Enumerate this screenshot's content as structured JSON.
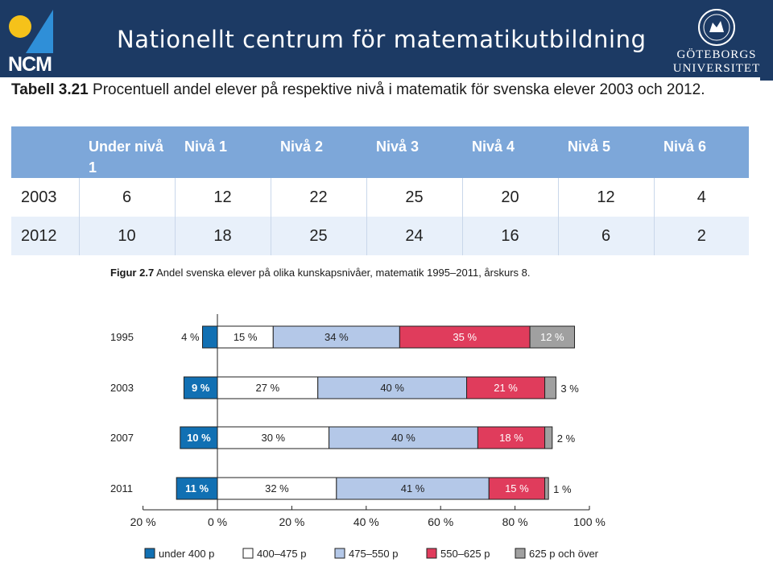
{
  "header": {
    "title": "Nationellt centrum för matematikutbildning",
    "logo_text": "NCM",
    "university_line1": "GÖTEBORGS",
    "university_line2": "UNIVERSITET"
  },
  "table_caption": {
    "label": "Tabell 3.21",
    "text": " Procentuell andel elever på respektive nivå i matematik för svenska elever 2003 och 2012."
  },
  "table": {
    "headers": [
      "",
      "Under nivå 1",
      "Nivå 1",
      "Nivå 2",
      "Nivå 3",
      "Nivå 4",
      "Nivå 5",
      "Nivå 6"
    ],
    "rows": [
      [
        "2003",
        "6",
        "12",
        "22",
        "25",
        "20",
        "12",
        "4"
      ],
      [
        "2012",
        "10",
        "18",
        "25",
        "24",
        "16",
        "6",
        "2"
      ]
    ]
  },
  "figure_caption": {
    "label": "Figur 2.7",
    "text": " Andel svenska elever på olika kunskapsnivåer, matematik 1995–2011, årskurs 8."
  },
  "chart_data": {
    "type": "bar",
    "orientation": "horizontal",
    "stacked": true,
    "baseline_note": "under 400 p extends to the left of 0 %",
    "categories": [
      "1995",
      "2003",
      "2007",
      "2011"
    ],
    "series": [
      {
        "name": "under 400 p",
        "color": "#1170b3",
        "values": [
          4,
          9,
          10,
          11
        ],
        "labels": [
          "4 %",
          "9 %",
          "10 %",
          "11 %"
        ],
        "direction": "negative"
      },
      {
        "name": "400–475 p",
        "color": "#ffffff",
        "values": [
          15,
          27,
          30,
          32
        ],
        "labels": [
          "15 %",
          "27 %",
          "30 %",
          "32 %"
        ]
      },
      {
        "name": "475–550 p",
        "color": "#b4c8e8",
        "values": [
          34,
          40,
          40,
          41
        ],
        "labels": [
          "34 %",
          "40 %",
          "40 %",
          "41 %"
        ]
      },
      {
        "name": "550–625 p",
        "color": "#e03c5c",
        "values": [
          35,
          21,
          18,
          15
        ],
        "labels": [
          "35 %",
          "21 %",
          "18 %",
          "15 %"
        ]
      },
      {
        "name": "625 p och över",
        "color": "#a0a0a0",
        "values": [
          12,
          3,
          2,
          1
        ],
        "labels": [
          "12 %",
          "3 %",
          "2 %",
          "1 %"
        ]
      }
    ],
    "xlim": [
      -20,
      100
    ],
    "xticks": [
      -20,
      0,
      20,
      40,
      60,
      80,
      100
    ],
    "xtick_labels": [
      "20 %",
      "0 %",
      "20 %",
      "40 %",
      "60 %",
      "80 %",
      "100 %"
    ],
    "grid": false,
    "legend": "bottom"
  }
}
